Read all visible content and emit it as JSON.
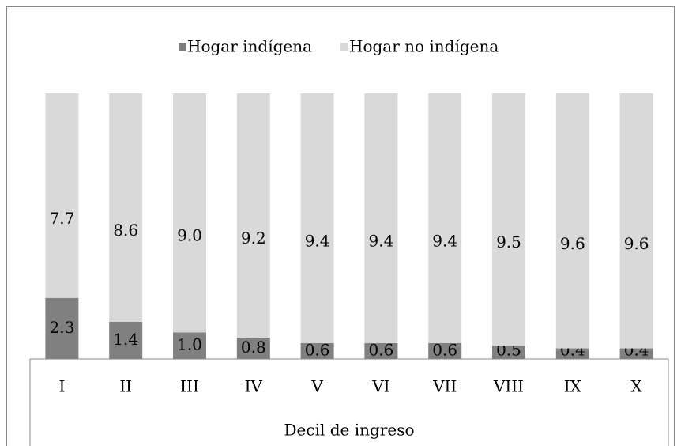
{
  "chart_data": {
    "type": "stacked_bar",
    "categories": [
      "I",
      "II",
      "III",
      "IV",
      "V",
      "VI",
      "VII",
      "VIII",
      "IX",
      "X"
    ],
    "series": [
      {
        "name": "Hogar indígena",
        "color": "#808080",
        "values": [
          2.3,
          1.4,
          1.0,
          0.8,
          0.6,
          0.6,
          0.6,
          0.5,
          0.4,
          0.4
        ]
      },
      {
        "name": "Hogar no indígena",
        "color": "#d9d9d9",
        "values": [
          7.7,
          8.6,
          9.0,
          9.2,
          9.4,
          9.4,
          9.4,
          9.5,
          9.6,
          9.6
        ]
      }
    ],
    "value_labels": [
      [
        "2.3",
        "1.4",
        "1.0",
        "0.8",
        "0.6",
        "0.6",
        "0.6",
        "0.5",
        "0.4",
        "0.4"
      ],
      [
        "7.7",
        "8.6",
        "9.0",
        "9.2",
        "9.4",
        "9.4",
        "9.4",
        "9.5",
        "9.6",
        "9.6"
      ]
    ],
    "x_label": "Decil de ingreso",
    "ylim": [
      0,
      10
    ],
    "legend": "top"
  }
}
